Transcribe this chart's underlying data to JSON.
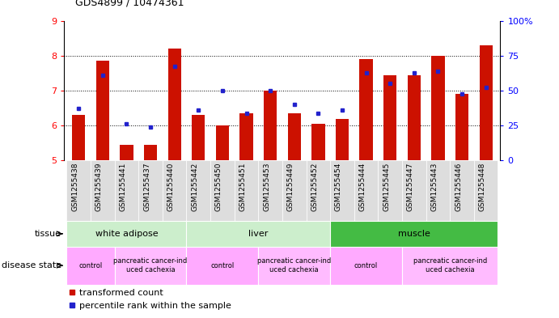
{
  "title": "GDS4899 / 10474361",
  "samples": [
    "GSM1255438",
    "GSM1255439",
    "GSM1255441",
    "GSM1255437",
    "GSM1255440",
    "GSM1255442",
    "GSM1255450",
    "GSM1255451",
    "GSM1255453",
    "GSM1255449",
    "GSM1255452",
    "GSM1255454",
    "GSM1255444",
    "GSM1255445",
    "GSM1255447",
    "GSM1255443",
    "GSM1255446",
    "GSM1255448"
  ],
  "red_values": [
    6.3,
    7.85,
    5.45,
    5.45,
    8.2,
    6.3,
    6.0,
    6.35,
    7.0,
    6.35,
    6.05,
    6.2,
    7.9,
    7.45,
    7.45,
    8.0,
    6.9,
    8.3
  ],
  "blue_values": [
    6.5,
    7.45,
    6.05,
    5.95,
    7.7,
    6.45,
    7.0,
    6.35,
    7.0,
    6.6,
    6.35,
    6.45,
    7.5,
    7.2,
    7.5,
    7.55,
    6.9,
    7.1
  ],
  "ylim_left": [
    5,
    9
  ],
  "ylim_right": [
    0,
    100
  ],
  "yticks_left": [
    5,
    6,
    7,
    8,
    9
  ],
  "yticks_right": [
    0,
    25,
    50,
    75,
    100
  ],
  "bar_color": "#cc1100",
  "dot_color": "#2222cc",
  "tissue_data": [
    {
      "label": "white adipose",
      "start": 0,
      "end": 5,
      "color": "#cceecc"
    },
    {
      "label": "liver",
      "start": 5,
      "end": 11,
      "color": "#cceecc"
    },
    {
      "label": "muscle",
      "start": 11,
      "end": 18,
      "color": "#44bb44"
    }
  ],
  "disease_data": [
    {
      "label": "control",
      "start": 0,
      "end": 2,
      "color": "#ffaaff"
    },
    {
      "label": "pancreatic cancer-ind\nuced cachexia",
      "start": 2,
      "end": 5,
      "color": "#ffbbff"
    },
    {
      "label": "control",
      "start": 5,
      "end": 8,
      "color": "#ffaaff"
    },
    {
      "label": "pancreatic cancer-ind\nuced cachexia",
      "start": 8,
      "end": 11,
      "color": "#ffbbff"
    },
    {
      "label": "control",
      "start": 11,
      "end": 14,
      "color": "#ffaaff"
    },
    {
      "label": "pancreatic cancer-ind\nuced cachexia",
      "start": 14,
      "end": 18,
      "color": "#ffbbff"
    }
  ],
  "legend_red": "transformed count",
  "legend_blue": "percentile rank within the sample",
  "grid_yticks": [
    6,
    7,
    8
  ],
  "xticklabel_bg": "#dddddd"
}
